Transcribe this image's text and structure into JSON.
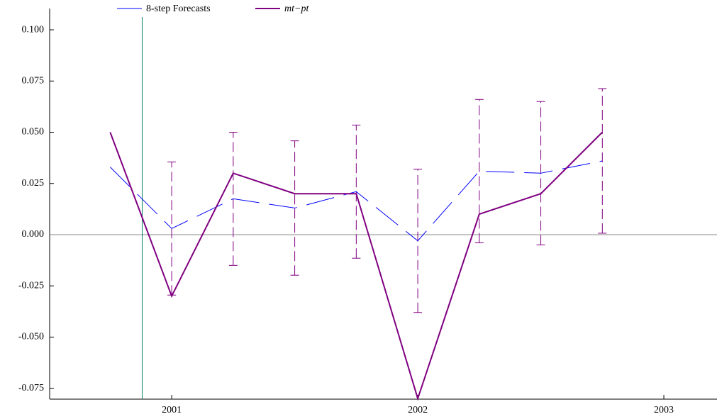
{
  "chart_data": {
    "type": "line",
    "x": [
      2000.75,
      2001.0,
      2001.25,
      2001.5,
      2001.75,
      2002.0,
      2002.25,
      2002.5,
      2002.75
    ],
    "series": [
      {
        "name": "8-step Forecasts",
        "color": "#0000ff",
        "dashed": true,
        "values": [
          0.033,
          0.003,
          0.0175,
          0.013,
          0.021,
          -0.003,
          0.031,
          0.03,
          0.036
        ],
        "errors": [
          null,
          0.0325,
          0.0325,
          0.0328,
          0.0325,
          0.035,
          0.035,
          0.035,
          0.0353
        ],
        "error_color": "#800080"
      },
      {
        "name": "mt−pt",
        "color": "#800080",
        "italic": true,
        "values": [
          0.05,
          -0.03,
          0.03,
          0.02,
          0.02,
          -0.08,
          0.01,
          0.02,
          0.05
        ]
      }
    ],
    "vline": {
      "x": 2000.88,
      "color": "#008060"
    },
    "xlim": [
      2000.504,
      2003.216
    ],
    "ylim": [
      -0.0803,
      0.1104
    ],
    "xticks": [
      2001,
      2002,
      2003
    ],
    "yticks": [
      {
        "value": -0.075,
        "label": "-0.075"
      },
      {
        "value": -0.05,
        "label": "-0.050"
      },
      {
        "value": -0.025,
        "label": "-0.025"
      },
      {
        "value": 0,
        "label": "0.000"
      },
      {
        "value": 0.025,
        "label": "0.025"
      },
      {
        "value": 0.05,
        "label": "0.050"
      },
      {
        "value": 0.075,
        "label": "0.075"
      },
      {
        "value": 0.1,
        "label": "0.100"
      }
    ],
    "zero_line": true
  }
}
